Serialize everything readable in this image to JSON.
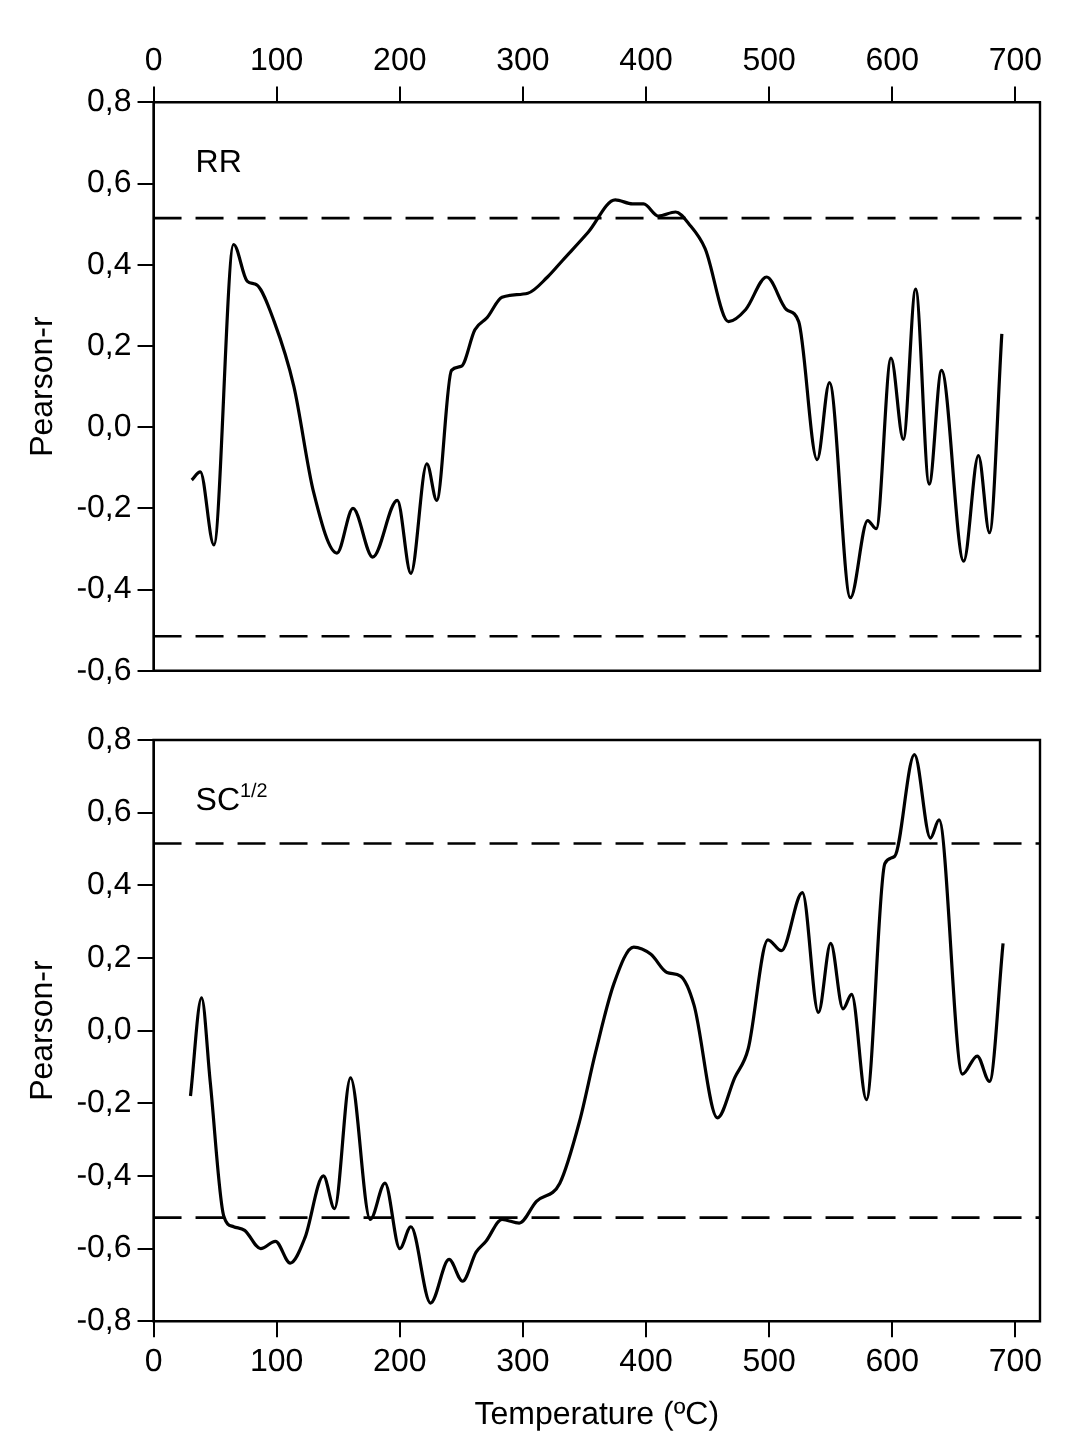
{
  "chart_data": [
    {
      "type": "line",
      "ylabel": "Pearson-r",
      "annotations": [
        "RR"
      ],
      "grid": false,
      "legend": false,
      "marker": "none",
      "line_style": "solid",
      "xlim": [
        0,
        720
      ],
      "xticks": [
        0,
        100,
        200,
        300,
        400,
        500,
        600,
        700
      ],
      "ylim": [
        -0.6,
        0.8
      ],
      "yticks": [
        {
          "value": -0.6,
          "label": "-0,6"
        },
        {
          "value": -0.4,
          "label": "-0,4"
        },
        {
          "value": -0.2,
          "label": "-0,2"
        },
        {
          "value": 0,
          "label": "0,0"
        },
        {
          "value": 0.2,
          "label": "0,2"
        },
        {
          "value": 0.4,
          "label": "0,4"
        },
        {
          "value": 0.6,
          "label": "0,6"
        },
        {
          "value": 0.8,
          "label": "0,8"
        }
      ],
      "ref_lines": [
        {
          "axis": "y",
          "value": 0.515,
          "line_style": "dashed"
        },
        {
          "axis": "y",
          "value": -0.515,
          "line_style": "dashed"
        }
      ],
      "series": [
        {
          "color": "#000000",
          "x": [
            31,
            38,
            49,
            65,
            76,
            84,
            98,
            114,
            130,
            149,
            162,
            178,
            198,
            209,
            222,
            230,
            242,
            250,
            261,
            271,
            283,
            304,
            320,
            332,
            353,
            375,
            389,
            398,
            410,
            424,
            435,
            448,
            467,
            481,
            498,
            514,
            524,
            539,
            549,
            566,
            580,
            587,
            599,
            609,
            619,
            630,
            640,
            658,
            670,
            679,
            689
          ],
          "values": [
            -0.13,
            -0.11,
            -0.29,
            0.45,
            0.36,
            0.35,
            0.26,
            0.1,
            -0.16,
            -0.31,
            -0.2,
            -0.32,
            -0.18,
            -0.36,
            -0.09,
            -0.18,
            0.14,
            0.15,
            0.24,
            0.27,
            0.32,
            0.33,
            0.37,
            0.41,
            0.48,
            0.56,
            0.55,
            0.55,
            0.52,
            0.53,
            0.5,
            0.44,
            0.26,
            0.29,
            0.37,
            0.29,
            0.26,
            -0.08,
            0.11,
            -0.42,
            -0.23,
            -0.25,
            0.17,
            -0.03,
            0.34,
            -0.14,
            0.14,
            -0.33,
            -0.07,
            -0.26,
            0.23
          ]
        }
      ]
    },
    {
      "type": "line",
      "xlabel": "Temperature (ºC)",
      "ylabel": "Pearson-r",
      "annotations": [
        "SC$^{1/2}$"
      ],
      "grid": false,
      "legend": false,
      "marker": "none",
      "line_style": "solid",
      "xlim": [
        0,
        720
      ],
      "xticks": [
        0,
        100,
        200,
        300,
        400,
        500,
        600,
        700
      ],
      "ylim": [
        -0.8,
        0.8
      ],
      "yticks": [
        {
          "value": -0.8,
          "label": "-0,8"
        },
        {
          "value": -0.6,
          "label": "-0,6"
        },
        {
          "value": -0.4,
          "label": "-0,4"
        },
        {
          "value": -0.2,
          "label": "-0,2"
        },
        {
          "value": 0,
          "label": "0,0"
        },
        {
          "value": 0.2,
          "label": "0,2"
        },
        {
          "value": 0.4,
          "label": "0,4"
        },
        {
          "value": 0.6,
          "label": "0,6"
        },
        {
          "value": 0.8,
          "label": "0,8"
        }
      ],
      "ref_lines": [
        {
          "axis": "y",
          "value": 0.515,
          "line_style": "dashed"
        },
        {
          "axis": "y",
          "value": -0.515,
          "line_style": "dashed"
        }
      ],
      "series": [
        {
          "color": "#000000",
          "x": [
            30,
            39,
            46,
            57,
            65,
            74,
            87,
            99,
            111,
            123,
            138,
            147,
            160,
            176,
            188,
            200,
            209,
            225,
            240,
            251,
            262,
            270,
            283,
            297,
            311,
            330,
            346,
            359,
            374,
            390,
            404,
            417,
            428,
            439,
            458,
            472,
            483,
            499,
            510,
            527,
            540,
            550,
            560,
            567,
            579,
            594,
            602,
            618,
            631,
            638,
            657,
            669,
            679,
            690
          ],
          "values": [
            -0.18,
            0.09,
            -0.14,
            -0.51,
            -0.54,
            -0.55,
            -0.6,
            -0.58,
            -0.64,
            -0.57,
            -0.4,
            -0.49,
            -0.13,
            -0.52,
            -0.42,
            -0.6,
            -0.54,
            -0.75,
            -0.63,
            -0.69,
            -0.61,
            -0.58,
            -0.52,
            -0.53,
            -0.47,
            -0.42,
            -0.25,
            -0.06,
            0.13,
            0.23,
            0.21,
            0.16,
            0.15,
            0.07,
            -0.24,
            -0.13,
            -0.05,
            0.25,
            0.22,
            0.38,
            0.05,
            0.24,
            0.06,
            0.1,
            -0.19,
            0.46,
            0.48,
            0.76,
            0.53,
            0.58,
            -0.12,
            -0.07,
            -0.14,
            0.24
          ]
        }
      ]
    }
  ]
}
